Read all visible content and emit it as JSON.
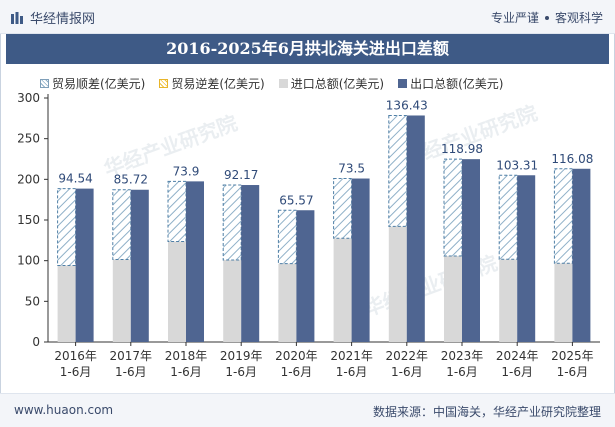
{
  "header": {
    "brand": "华经情报网",
    "tagline_left": "专业严谨",
    "tagline_right": "客观科学"
  },
  "title": "2016-2025年6月拱北海关进出口差额",
  "legend": {
    "surplus": "贸易顺差(亿美元)",
    "deficit": "贸易逆差(亿美元)",
    "import": "进口总额(亿美元)",
    "export": "出口总额(亿美元)"
  },
  "footer": {
    "site": "www.huaon.com",
    "source": "数据来源：中国海关，华经产业研究院整理"
  },
  "watermark": "华经产业研究院",
  "colors": {
    "export": "#4f6591",
    "import": "#d8d8d8",
    "surplus_hatch": "#8fb0c8",
    "title_bg": "#3e5a86"
  },
  "chart_data": {
    "type": "bar",
    "categories": [
      "2016年\n1-6月",
      "2017年\n1-6月",
      "2018年\n1-6月",
      "2019年\n1-6月",
      "2020年\n1-6月",
      "2021年\n1-6月",
      "2022年\n1-6月",
      "2023年\n1-6月",
      "2024年\n1-6月",
      "2025年\n1-6月"
    ],
    "series": [
      {
        "name": "出口总额(亿美元)",
        "values": [
          188.6,
          187.2,
          197.5,
          193.0,
          162.0,
          201.0,
          278.5,
          224.8,
          205.0,
          213.0
        ]
      },
      {
        "name": "进口总额(亿美元)",
        "values": [
          94.1,
          101.5,
          123.6,
          100.8,
          96.4,
          127.5,
          142.1,
          105.8,
          101.7,
          96.9
        ]
      },
      {
        "name": "贸易顺差(亿美元)",
        "values": [
          94.54,
          85.72,
          73.9,
          92.17,
          65.57,
          73.5,
          136.43,
          118.98,
          103.31,
          116.08
        ]
      },
      {
        "name": "贸易逆差(亿美元)",
        "values": [
          0,
          0,
          0,
          0,
          0,
          0,
          0,
          0,
          0,
          0
        ]
      }
    ],
    "ylim": [
      0,
      300
    ],
    "yticks": [
      0,
      50,
      100,
      150,
      200,
      250,
      300
    ],
    "grid": false,
    "legend_position": "top"
  }
}
